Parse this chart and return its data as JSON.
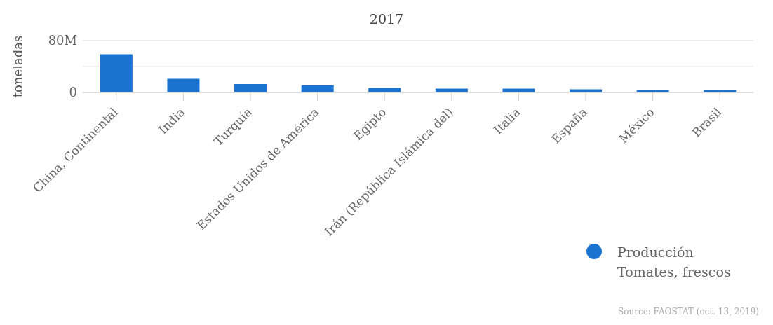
{
  "chart_data": {
    "type": "bar",
    "title": "2017",
    "ylabel": "toneladas",
    "categories": [
      "China, Continental",
      "India",
      "Turquía",
      "Estados Unidos de América",
      "Egipto",
      "Irán (República Islámica del)",
      "Italia",
      "España",
      "México",
      "Brasil"
    ],
    "series": [
      {
        "name": "Producción Tomates, frescos",
        "color": "#1a73d1",
        "values": [
          59000000,
          21000000,
          13000000,
          11000000,
          7000000,
          6000000,
          6000000,
          5000000,
          4000000,
          4000000
        ]
      }
    ],
    "ylim": [
      0,
      80000000
    ],
    "yticks": [
      0,
      {
        "value": 40000000,
        "label": null
      },
      {
        "value": 80000000,
        "label": "80M"
      }
    ],
    "grid": "y",
    "legend": "bottom right",
    "annotations": [
      "Source: FAOSTAT (oct. 13, 2019)"
    ]
  }
}
